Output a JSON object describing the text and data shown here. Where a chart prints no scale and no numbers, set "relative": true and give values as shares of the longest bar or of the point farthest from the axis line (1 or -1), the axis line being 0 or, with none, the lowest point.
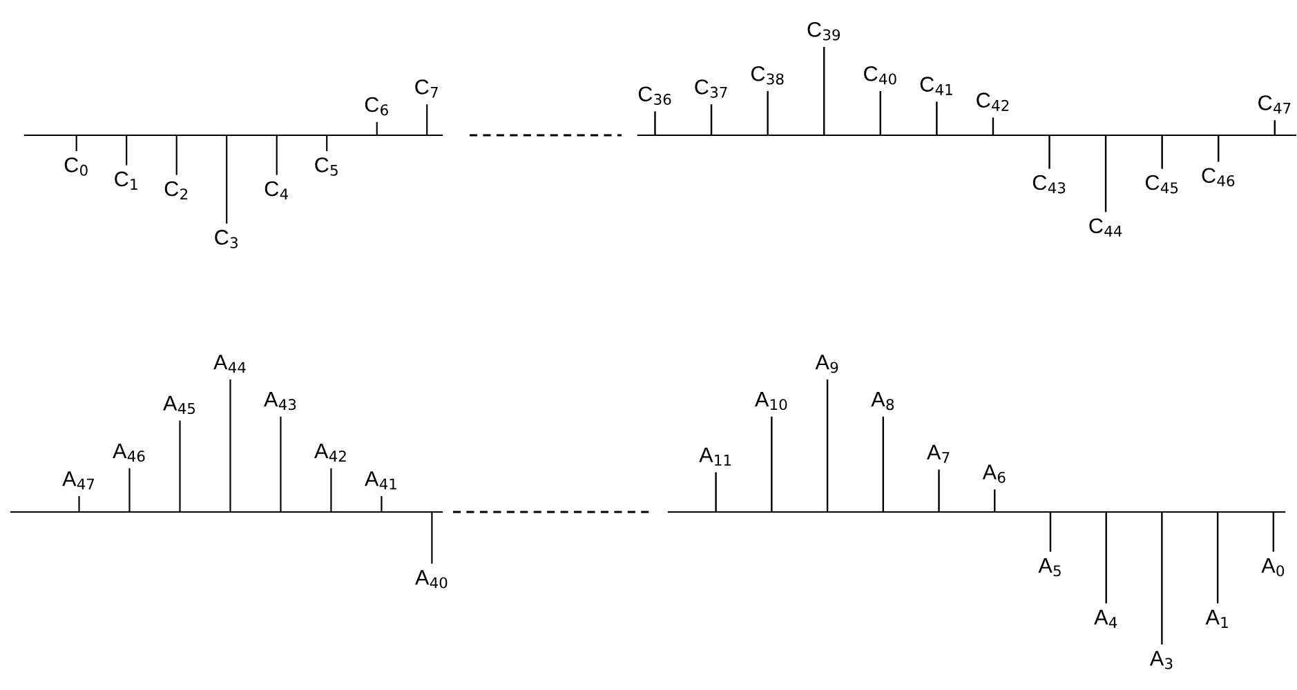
{
  "chart_data": [
    {
      "type": "bar",
      "relative": true,
      "color": "#000000",
      "categories": [
        "C$_{0}$",
        "C$_{1}$",
        "C$_{2}$",
        "C$_{3}$",
        "C$_{4}$",
        "C$_{5}$",
        "C$_{6}$",
        "C$_{7}$"
      ],
      "values": [
        -0.18,
        -0.34,
        -0.45,
        -1,
        -0.45,
        -0.18,
        0.15,
        0.35
      ]
    },
    {
      "type": "bar",
      "relative": true,
      "color": "#000000",
      "categories": [
        "C$_{36}$",
        "C$_{37}$",
        "C$_{38}$",
        "C$_{39}$",
        "C$_{40}$",
        "C$_{41}$",
        "C$_{42}$",
        "C$_{43}$",
        "C$_{44}$",
        "C$_{45}$",
        "C$_{46}$",
        "C$_{47}$"
      ],
      "values": [
        0.27,
        0.35,
        0.5,
        1,
        0.5,
        0.38,
        0.2,
        -0.38,
        -0.87,
        -0.38,
        -0.3,
        0.17
      ]
    },
    {
      "type": "bar",
      "relative": true,
      "color": "#000000",
      "categories": [
        "A$_{47}$",
        "A$_{46}$",
        "A$_{45}$",
        "A$_{44}$",
        "A$_{43}$",
        "A$_{42}$",
        "A$_{41}$",
        "A$_{40}$"
      ],
      "values": [
        0.12,
        0.33,
        0.69,
        1,
        0.72,
        0.33,
        0.12,
        -0.39
      ]
    },
    {
      "type": "bar",
      "relative": true,
      "color": "#000000",
      "categories": [
        "A$_{11}$",
        "A$_{10}$",
        "A$_{9}$",
        "A$_{8}$",
        "A$_{7}$",
        "A$_{6}$",
        "A$_{5}$",
        "A$_{4}$",
        "A$_{3}$",
        "A$_{1}$",
        "A$_{0}$"
      ],
      "values": [
        0.3,
        0.72,
        1,
        0.72,
        0.32,
        0.17,
        -0.3,
        -0.69,
        -1,
        -0.69,
        -0.3
      ]
    }
  ]
}
